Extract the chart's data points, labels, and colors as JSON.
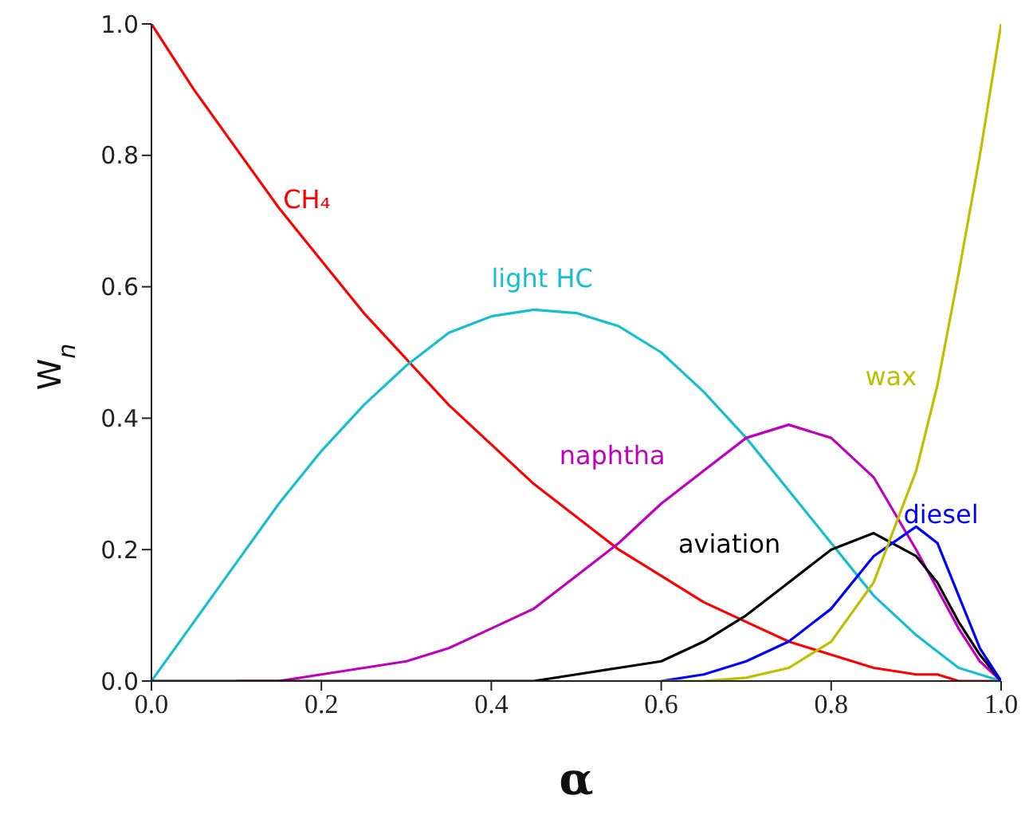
{
  "chart_data": {
    "type": "line",
    "xlabel": "α",
    "ylabel": "W$_{n}$",
    "x": [
      0,
      0.05,
      0.1,
      0.15,
      0.2,
      0.25,
      0.3,
      0.35,
      0.4,
      0.45,
      0.5,
      0.55,
      0.6,
      0.65,
      0.7,
      0.75,
      0.8,
      0.85,
      0.9,
      0.925,
      0.95,
      0.975,
      1.0
    ],
    "series": [
      {
        "name": "CH₄",
        "color": "#ff0000",
        "values": [
          1.0,
          0.9,
          0.81,
          0.72,
          0.64,
          0.56,
          0.49,
          0.42,
          0.36,
          0.3,
          0.25,
          0.2,
          0.16,
          0.12,
          0.09,
          0.06,
          0.04,
          0.02,
          0.01,
          0.01,
          0.0,
          0.0,
          0.0
        ]
      },
      {
        "name": "light HC",
        "color": "#17becf",
        "values": [
          0.0,
          0.09,
          0.18,
          0.27,
          0.35,
          0.42,
          0.48,
          0.53,
          0.555,
          0.565,
          0.56,
          0.54,
          0.5,
          0.44,
          0.37,
          0.29,
          0.21,
          0.13,
          0.07,
          0.045,
          0.02,
          0.01,
          0.0
        ]
      },
      {
        "name": "naphtha",
        "color": "#bf00bf",
        "values": [
          null,
          null,
          0.0,
          0.0,
          0.01,
          0.02,
          0.03,
          0.05,
          0.08,
          0.11,
          0.16,
          0.21,
          0.27,
          0.32,
          0.37,
          0.39,
          0.37,
          0.31,
          0.2,
          0.14,
          0.08,
          0.03,
          0.0
        ]
      },
      {
        "name": "aviation",
        "color": "#000000",
        "values": [
          0.0,
          0.0,
          0.0,
          0.0,
          0.0,
          0.0,
          0.0,
          0.0,
          0.0,
          0.0,
          0.01,
          0.02,
          0.03,
          0.06,
          0.1,
          0.15,
          0.2,
          0.225,
          0.19,
          0.15,
          0.09,
          0.04,
          0.0
        ]
      },
      {
        "name": "diesel",
        "color": "#0000ff",
        "values": [
          null,
          null,
          null,
          null,
          null,
          null,
          null,
          null,
          null,
          null,
          null,
          null,
          0.0,
          0.01,
          0.03,
          0.06,
          0.11,
          0.19,
          0.235,
          0.21,
          0.13,
          0.05,
          0.0
        ]
      },
      {
        "name": "wax",
        "color": "#bfbf00",
        "values": [
          null,
          null,
          null,
          null,
          null,
          null,
          null,
          null,
          null,
          null,
          null,
          null,
          0.0,
          0.0,
          0.005,
          0.02,
          0.06,
          0.15,
          0.32,
          0.45,
          0.62,
          0.8,
          1.0
        ]
      }
    ],
    "xlim": [
      0,
      1
    ],
    "ylim": [
      0,
      1
    ],
    "xticks": [
      {
        "value": 0,
        "label": "0.0"
      },
      {
        "value": 0.2,
        "label": "0.2"
      },
      {
        "value": 0.4,
        "label": "0.4"
      },
      {
        "value": 0.6,
        "label": "0.6"
      },
      {
        "value": 0.8,
        "label": "0.8"
      },
      {
        "value": 1,
        "label": "1.0"
      }
    ],
    "yticks": [
      {
        "value": 0,
        "label": "0.0"
      },
      {
        "value": 0.2,
        "label": "0.2"
      },
      {
        "value": 0.4,
        "label": "0.4"
      },
      {
        "value": 0.6,
        "label": "0.6"
      },
      {
        "value": 0.8,
        "label": "0.8"
      },
      {
        "value": 1,
        "label": "1.0"
      }
    ],
    "grid": false,
    "legend": false,
    "marker": "none",
    "line_style": "solid"
  }
}
